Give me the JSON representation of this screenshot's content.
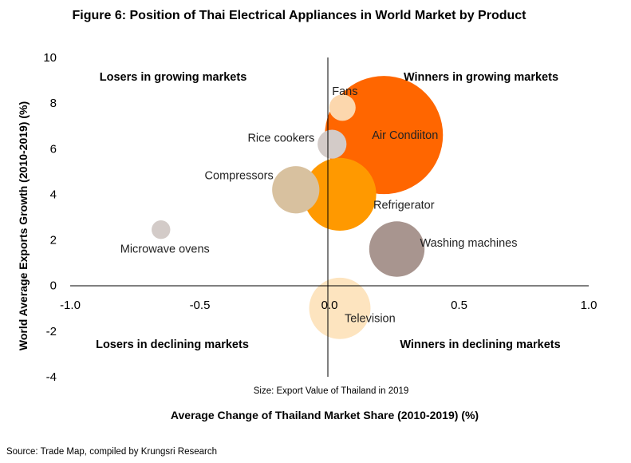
{
  "chart_data": {
    "type": "scatter",
    "title": "Figure 6: Position of Thai Electrical Appliances in World Market by Product",
    "xlabel": "Average Change of Thailand Market Share (2010-2019) (%)",
    "ylabel": "World Average Exports Growth (2010-2019) (%)",
    "size_note": "Size: Export Value of Thailand in 2019",
    "source": "Source: Trade Map, compiled by Krungsri Research",
    "xlim": [
      -1.0,
      1.0
    ],
    "ylim": [
      -4,
      10
    ],
    "x_ticks": [
      "-1.0",
      "-0.5",
      "0.0",
      "0.5",
      "1.0"
    ],
    "y_ticks": [
      "10",
      "8",
      "6",
      "4",
      "2",
      "0",
      "-2",
      "-4"
    ],
    "grid": false,
    "quadrants": {
      "top_left": "Losers in growing markets",
      "top_right": "Winners in growing markets",
      "bottom_left": "Losers in declining markets",
      "bottom_right": "Winners in declining markets"
    },
    "points": [
      {
        "label": "Air Condiiton",
        "x": 0.21,
        "y": 6.6,
        "size": 100,
        "color": "#ff6600"
      },
      {
        "label": "Refrigerator",
        "x": 0.04,
        "y": 4.0,
        "size": 38,
        "color": "#ff9900"
      },
      {
        "label": "Television",
        "x": 0.04,
        "y": -1.0,
        "size": 27,
        "color": "#fde4bf"
      },
      {
        "label": "Washing machines",
        "x": 0.26,
        "y": 1.6,
        "size": 22,
        "color": "#a8958f"
      },
      {
        "label": "Compressors",
        "x": -0.13,
        "y": 4.2,
        "size": 16,
        "color": "#d8c19f"
      },
      {
        "label": "Rice cookers",
        "x": 0.01,
        "y": 6.2,
        "size": 6,
        "color": "#d3cbc8"
      },
      {
        "label": "Fans",
        "x": 0.05,
        "y": 7.8,
        "size": 5,
        "color": "#fcd7ad"
      },
      {
        "label": "Microwave ovens",
        "x": -0.65,
        "y": 2.45,
        "size": 2.5,
        "color": "#d3cbc8"
      }
    ]
  }
}
